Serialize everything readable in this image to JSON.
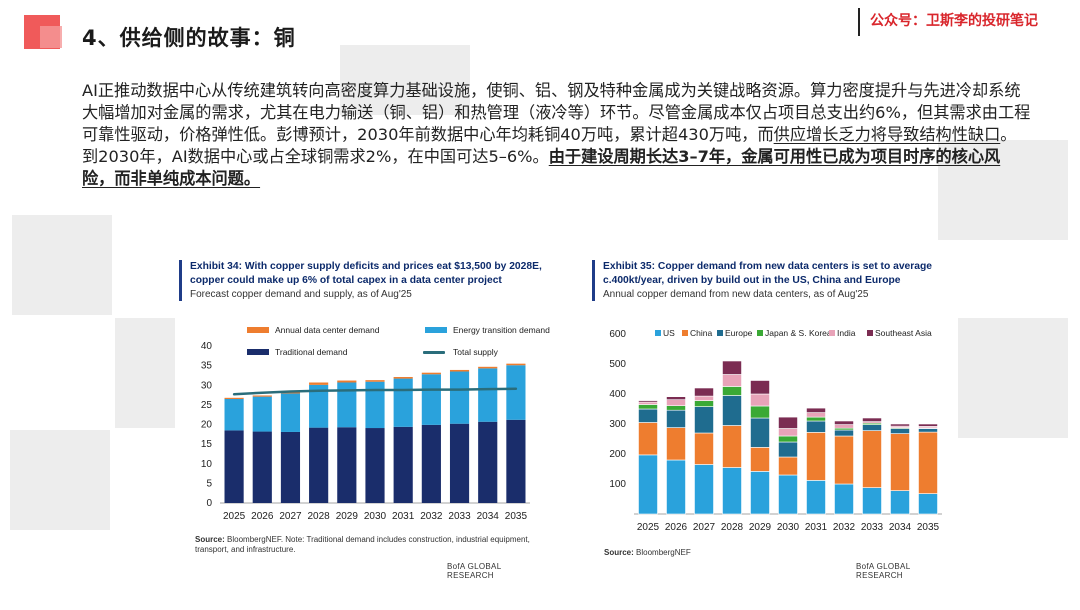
{
  "header": {
    "title": "4、供给侧的故事：铜",
    "brand": "公众号：卫斯李的投研笔记"
  },
  "body": {
    "p1": "AI正推动数据中心从传统建筑转向高密度算力基础设施，使铜、铝、钢及特种金属成为关键战略资源。算力密度提升与先进冷却系统大幅增加对金属的需求，尤其在电力输送（铜、铝）和热管理（液冷等）环节。尽管金属成本仅占项目总支出约6%，但其需求由工程可靠性驱动，价格弹性低。彭博预计，2030年前数据中心年均耗铜40万吨，累计超430万吨，而",
    "p2_underline": "供应增长乏力将导致结构性缺口",
    "p3": "。到2030年，AI数据中心或占全球铜需求2%，在中国可达5–6%。",
    "p4_bold_underline": "由于建设周期长达3–7年，金属可用性已成为项目时序的核心风险，而非单纯成本问题。"
  },
  "exhibit34": {
    "title": "Exhibit 34: With copper supply deficits and prices eat $13,500 by 2028E, copper could make up 6% of total capex in a data center project",
    "subtitle": "Forecast copper demand and supply, as of Aug'25",
    "source_label": "Source:",
    "source_text": "BloombergNEF. Note: Traditional demand includes construction, industrial equipment, transport, and infrastructure.",
    "footer": "BofA GLOBAL RESEARCH"
  },
  "exhibit35": {
    "title": "Exhibit 35: Copper demand from new data centers is set to average c.400kt/year, driven by build out in the US, China and Europe",
    "subtitle": "Annual copper demand from new data centers, as of Aug'25",
    "source_label": "Source:",
    "source_text": "BloombergNEF",
    "footer": "BofA GLOBAL RESEARCH"
  },
  "colors": {
    "accent": "#f05a5a",
    "brand": "#d9262c",
    "traditional": "#1a2d6b",
    "energy": "#2aa2dc",
    "datacenter": "#ee7d2f",
    "supply": "#2a6d7b",
    "us": "#2aa2dc",
    "china": "#ee7d2f",
    "europe": "#1f6c8f",
    "japan": "#3aa935",
    "india": "#e8a3b8",
    "sea": "#7b2c52"
  },
  "chart_data": [
    {
      "type": "bar",
      "stacked": true,
      "title": "Forecast copper demand and supply, as of Aug'25",
      "categories": [
        "2025",
        "2026",
        "2027",
        "2028",
        "2029",
        "2030",
        "2031",
        "2032",
        "2033",
        "2034",
        "2035"
      ],
      "series": [
        {
          "name": "Traditional demand",
          "values": [
            18.5,
            18.2,
            18.1,
            19.2,
            19.3,
            19.1,
            19.4,
            19.9,
            20.2,
            20.7,
            21.2
          ]
        },
        {
          "name": "Energy transition demand",
          "values": [
            8.0,
            8.9,
            9.8,
            10.9,
            11.4,
            11.8,
            12.3,
            12.9,
            13.3,
            13.6,
            13.9
          ]
        },
        {
          "name": "Annual data center demand",
          "values": [
            0.3,
            0.3,
            0.4,
            0.6,
            0.5,
            0.4,
            0.4,
            0.4,
            0.4,
            0.4,
            0.4
          ]
        }
      ],
      "line": {
        "name": "Total supply",
        "values": [
          27.7,
          28.1,
          28.4,
          28.6,
          28.7,
          28.8,
          28.8,
          28.9,
          28.9,
          29.0,
          29.1
        ]
      },
      "ylim": [
        0,
        40
      ],
      "yticks": [
        0,
        5,
        10,
        15,
        20,
        25,
        30,
        35,
        40
      ],
      "legend": [
        "Annual data center demand",
        "Energy transition demand",
        "Traditional demand",
        "Total supply"
      ]
    },
    {
      "type": "bar",
      "stacked": true,
      "title": "Annual copper demand from new data centers, as of Aug'25",
      "categories": [
        "2025",
        "2026",
        "2027",
        "2028",
        "2029",
        "2030",
        "2031",
        "2032",
        "2033",
        "2034",
        "2035"
      ],
      "series": [
        {
          "name": "US",
          "values": [
            197,
            180,
            165,
            155,
            142,
            130,
            112,
            100,
            88,
            78,
            68
          ]
        },
        {
          "name": "China",
          "values": [
            108,
            108,
            105,
            140,
            80,
            60,
            160,
            160,
            190,
            190,
            205
          ]
        },
        {
          "name": "Europe",
          "values": [
            45,
            58,
            88,
            100,
            98,
            50,
            38,
            20,
            20,
            17,
            12
          ]
        },
        {
          "name": "Japan & S. Korea",
          "values": [
            15,
            15,
            20,
            30,
            40,
            20,
            13,
            6,
            5,
            3,
            2
          ]
        },
        {
          "name": "India",
          "values": [
            8,
            20,
            15,
            40,
            40,
            25,
            15,
            12,
            5,
            5,
            5
          ]
        },
        {
          "name": "Southeast Asia",
          "values": [
            5,
            10,
            27,
            45,
            45,
            38,
            15,
            12,
            12,
            7,
            8
          ]
        }
      ],
      "ylim": [
        0,
        600
      ],
      "yticks": [
        100,
        200,
        300,
        400,
        500,
        600
      ],
      "legend": [
        "US",
        "China",
        "Europe",
        "Japan & S. Korea",
        "India",
        "Southeast Asia"
      ]
    }
  ]
}
